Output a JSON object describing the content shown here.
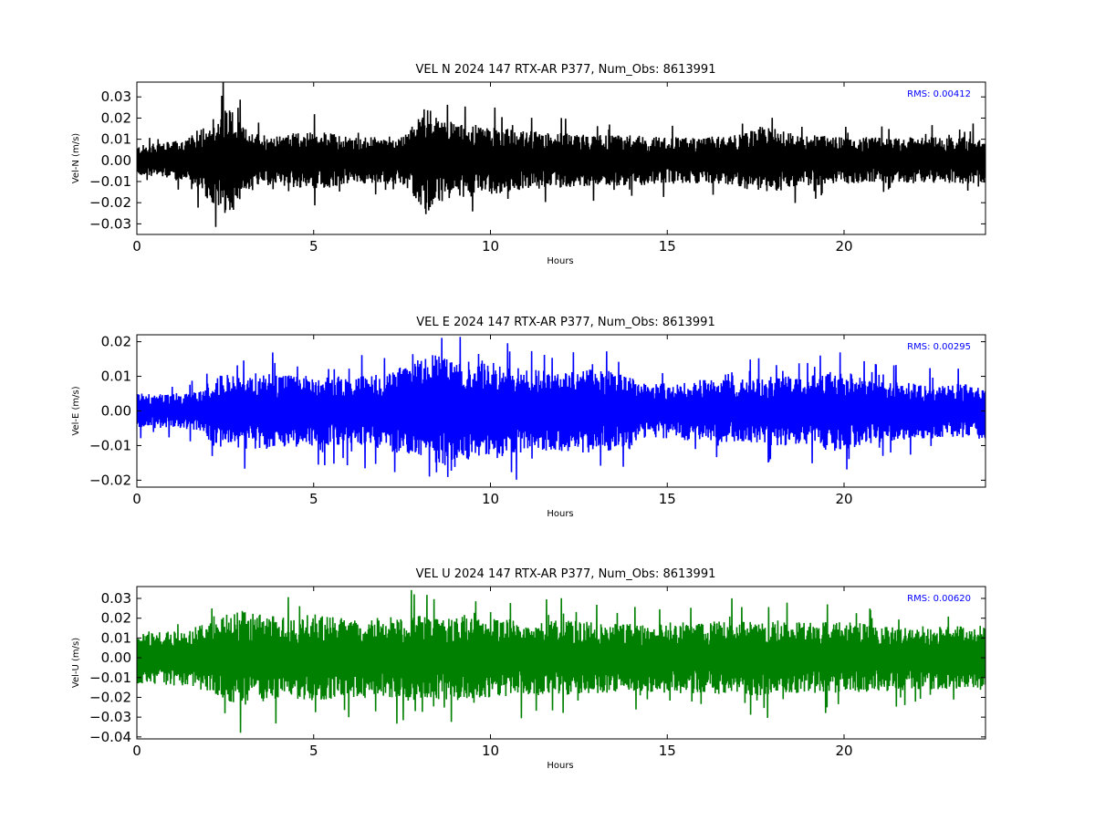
{
  "chart_data": [
    {
      "type": "line",
      "title": "VEL N 2024 147 RTX-AR  P377, Num_Obs: 8613991",
      "xlabel": "Hours",
      "ylabel": "Vel-N (m/s)",
      "xlim": [
        0,
        24
      ],
      "ylim": [
        -0.035,
        0.037
      ],
      "xticks": [
        0,
        5,
        10,
        15,
        20
      ],
      "xtick_labels": [
        "0",
        "5",
        "10",
        "15",
        "20"
      ],
      "yticks": [
        -0.03,
        -0.02,
        -0.01,
        0.0,
        0.01,
        0.02,
        0.03
      ],
      "ytick_labels": [
        "−0.03",
        "−0.02",
        "−0.01",
        "0.00",
        "0.01",
        "0.02",
        "0.03"
      ],
      "annotation": "RMS:  0.00412",
      "annotation_color": "#0000ff",
      "grid": false,
      "color": "#000000",
      "series": [
        {
          "x": [
            0,
            1,
            1.5,
            2,
            2.3,
            2.6,
            3,
            3.5,
            4,
            5,
            5.5,
            6,
            7,
            7.5,
            7.9,
            8.2,
            8.5,
            9,
            10,
            11,
            12,
            13,
            14,
            15,
            16,
            17,
            17.8,
            18.5,
            19,
            20,
            21,
            22,
            23,
            24
          ],
          "y": [
            0.007,
            0.009,
            0.011,
            0.019,
            0.022,
            0.027,
            0.016,
            0.013,
            0.012,
            0.014,
            0.013,
            0.011,
            0.011,
            0.012,
            0.018,
            0.027,
            0.02,
            0.018,
            0.016,
            0.014,
            0.013,
            0.012,
            0.012,
            0.011,
            0.011,
            0.012,
            0.017,
            0.013,
            0.012,
            0.011,
            0.011,
            0.011,
            0.011,
            0.011
          ]
        }
      ]
    },
    {
      "type": "line",
      "title": "VEL E 2024 147 RTX-AR  P377, Num_Obs: 8613991",
      "xlabel": "Hours",
      "ylabel": "Vel-E (m/s)",
      "xlim": [
        0,
        24
      ],
      "ylim": [
        -0.022,
        0.022
      ],
      "xticks": [
        0,
        5,
        10,
        15,
        20
      ],
      "xtick_labels": [
        "0",
        "5",
        "10",
        "15",
        "20"
      ],
      "yticks": [
        -0.02,
        -0.01,
        0.0,
        0.01,
        0.02
      ],
      "ytick_labels": [
        "−0.02",
        "−0.01",
        "0.00",
        "0.01",
        "0.02"
      ],
      "annotation": "RMS:  0.00295",
      "annotation_color": "#0000ff",
      "grid": false,
      "color": "#0000ff",
      "series": [
        {
          "x": [
            0,
            1,
            1.9,
            2.1,
            3,
            4,
            5,
            6,
            7,
            7.5,
            8,
            8.5,
            9,
            9.8,
            10.5,
            11,
            12,
            13,
            14,
            14.2,
            15,
            16,
            17,
            18,
            19,
            19.8,
            20.5,
            21,
            22,
            23,
            24
          ],
          "y": [
            0.005,
            0.005,
            0.006,
            0.01,
            0.011,
            0.011,
            0.01,
            0.01,
            0.011,
            0.013,
            0.015,
            0.018,
            0.014,
            0.015,
            0.013,
            0.012,
            0.012,
            0.012,
            0.011,
            0.008,
            0.008,
            0.009,
            0.009,
            0.01,
            0.01,
            0.012,
            0.01,
            0.009,
            0.008,
            0.008,
            0.008
          ]
        }
      ]
    },
    {
      "type": "line",
      "title": "VEL U 2024 147 RTX-AR  P377, Num_Obs: 8613991",
      "xlabel": "Hours",
      "ylabel": "Vel-U (m/s)",
      "xlim": [
        0,
        24
      ],
      "ylim": [
        -0.041,
        0.036
      ],
      "xticks": [
        0,
        5,
        10,
        15,
        20
      ],
      "xtick_labels": [
        "0",
        "5",
        "10",
        "15",
        "20"
      ],
      "yticks": [
        -0.04,
        -0.03,
        -0.02,
        -0.01,
        0.0,
        0.01,
        0.02,
        0.03
      ],
      "ytick_labels": [
        "−0.04",
        "−0.03",
        "−0.02",
        "−0.01",
        "0.00",
        "0.01",
        "0.02",
        "0.03"
      ],
      "annotation": "RMS:  0.00620",
      "annotation_color": "#0000ff",
      "grid": false,
      "color": "#008000",
      "series": [
        {
          "x": [
            0,
            1,
            2,
            2.5,
            3,
            4,
            5,
            6,
            7,
            8,
            9,
            9.5,
            10,
            11,
            12,
            13,
            14,
            15,
            16,
            17,
            18,
            19,
            20,
            21,
            22,
            23,
            24
          ],
          "y": [
            0.013,
            0.014,
            0.017,
            0.022,
            0.024,
            0.021,
            0.022,
            0.02,
            0.021,
            0.022,
            0.021,
            0.024,
            0.02,
            0.019,
            0.019,
            0.018,
            0.017,
            0.018,
            0.018,
            0.019,
            0.019,
            0.018,
            0.018,
            0.017,
            0.016,
            0.016,
            0.017
          ]
        }
      ]
    }
  ]
}
